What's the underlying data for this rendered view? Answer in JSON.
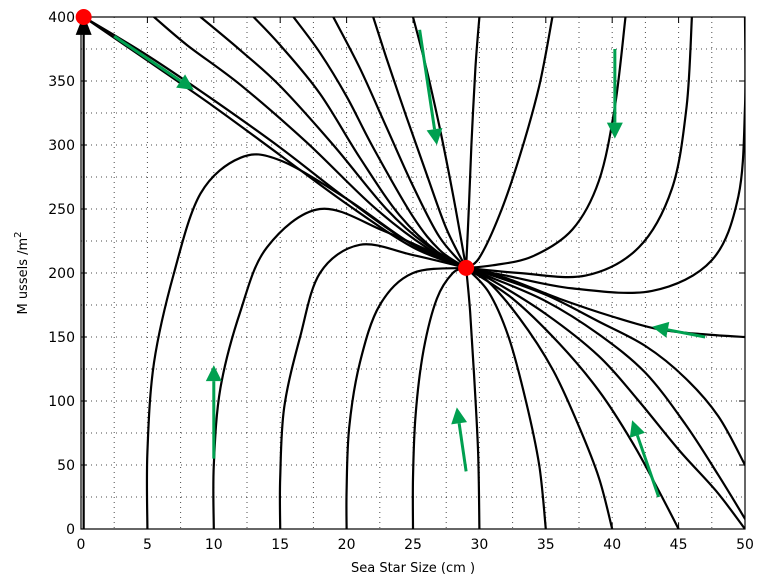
{
  "chart_data": {
    "type": "line",
    "title": "",
    "xlabel": "Sea Star Size (cm )",
    "ylabel": "M ussels /m",
    "ylabel_superscript": "2",
    "xlim": [
      0,
      50
    ],
    "ylim": [
      0,
      400
    ],
    "x_ticks": [
      0,
      5,
      10,
      15,
      20,
      25,
      30,
      35,
      40,
      45,
      50
    ],
    "y_ticks": [
      0,
      50,
      100,
      150,
      200,
      250,
      300,
      350,
      400
    ],
    "grid": true,
    "colors": {
      "trajectory": "#000000",
      "equilibrium": "#ff0000",
      "direction_arrow": "#00a050",
      "axis_arrow": "#000000"
    },
    "equilibria": [
      {
        "x": 0.2,
        "y": 400
      },
      {
        "x": 29,
        "y": 204
      }
    ],
    "trajectories": [
      [
        [
          0.2,
          400
        ],
        [
          5,
          370
        ],
        [
          10,
          335
        ],
        [
          15,
          298
        ],
        [
          20,
          258
        ],
        [
          25,
          222
        ],
        [
          29,
          204
        ]
      ],
      [
        [
          0.2,
          400
        ],
        [
          5,
          366
        ],
        [
          10,
          330
        ],
        [
          15,
          292
        ],
        [
          20,
          254
        ],
        [
          25,
          220
        ],
        [
          29,
          204
        ]
      ],
      [
        [
          5.5,
          400
        ],
        [
          8,
          378
        ],
        [
          12,
          347
        ],
        [
          17,
          302
        ],
        [
          22,
          252
        ],
        [
          26,
          220
        ],
        [
          29,
          204
        ]
      ],
      [
        [
          9,
          400
        ],
        [
          12,
          374
        ],
        [
          15,
          346
        ],
        [
          19,
          300
        ],
        [
          23,
          250
        ],
        [
          26,
          222
        ],
        [
          29,
          204
        ]
      ],
      [
        [
          13,
          400
        ],
        [
          15,
          378
        ],
        [
          18,
          340
        ],
        [
          21,
          290
        ],
        [
          24,
          245
        ],
        [
          27,
          215
        ],
        [
          29,
          204
        ]
      ],
      [
        [
          16,
          400
        ],
        [
          18,
          372
        ],
        [
          20,
          338
        ],
        [
          22,
          298
        ],
        [
          25,
          244
        ],
        [
          27,
          218
        ],
        [
          29,
          204
        ]
      ],
      [
        [
          19,
          400
        ],
        [
          21,
          360
        ],
        [
          23,
          314
        ],
        [
          25,
          268
        ],
        [
          27,
          228
        ],
        [
          29,
          204
        ]
      ],
      [
        [
          22,
          400
        ],
        [
          23,
          368
        ],
        [
          24.5,
          322
        ],
        [
          26,
          278
        ],
        [
          27.5,
          235
        ],
        [
          29,
          204
        ]
      ],
      [
        [
          25,
          400
        ],
        [
          26,
          360
        ],
        [
          27,
          314
        ],
        [
          28,
          262
        ],
        [
          29,
          204
        ]
      ],
      [
        [
          30,
          400
        ],
        [
          29.7,
          360
        ],
        [
          29.4,
          300
        ],
        [
          29.2,
          250
        ],
        [
          29,
          204
        ]
      ],
      [
        [
          35.5,
          400
        ],
        [
          34.5,
          346
        ],
        [
          33,
          290
        ],
        [
          31.5,
          245
        ],
        [
          30,
          212
        ],
        [
          29,
          204
        ]
      ],
      [
        [
          41,
          400
        ],
        [
          40.2,
          330
        ],
        [
          39,
          272
        ],
        [
          37,
          234
        ],
        [
          34,
          213
        ],
        [
          31,
          206
        ],
        [
          29,
          204
        ]
      ],
      [
        [
          46,
          400
        ],
        [
          45.6,
          330
        ],
        [
          44.5,
          266
        ],
        [
          42,
          220
        ],
        [
          38,
          198
        ],
        [
          33,
          200
        ],
        [
          29,
          204
        ]
      ],
      [
        [
          50,
          400
        ],
        [
          50,
          330
        ],
        [
          49.5,
          260
        ],
        [
          47.5,
          210
        ],
        [
          43,
          186
        ],
        [
          37,
          188
        ],
        [
          32,
          198
        ],
        [
          29,
          204
        ]
      ],
      [
        [
          5,
          0
        ],
        [
          5,
          60
        ],
        [
          5.5,
          130
        ],
        [
          7,
          200
        ],
        [
          9,
          262
        ],
        [
          12,
          290
        ],
        [
          15,
          288
        ],
        [
          20,
          258
        ],
        [
          25,
          222
        ],
        [
          29,
          204
        ]
      ],
      [
        [
          10,
          0
        ],
        [
          10,
          50
        ],
        [
          10.5,
          110
        ],
        [
          12,
          170
        ],
        [
          14,
          220
        ],
        [
          18,
          250
        ],
        [
          23,
          232
        ],
        [
          29,
          204
        ]
      ],
      [
        [
          15,
          0
        ],
        [
          15,
          40
        ],
        [
          15.3,
          95
        ],
        [
          16.5,
          150
        ],
        [
          18,
          200
        ],
        [
          21,
          222
        ],
        [
          25,
          214
        ],
        [
          29,
          204
        ]
      ],
      [
        [
          20,
          0
        ],
        [
          20,
          30
        ],
        [
          20.2,
          80
        ],
        [
          21,
          130
        ],
        [
          22.5,
          175
        ],
        [
          25,
          200
        ],
        [
          29,
          204
        ]
      ],
      [
        [
          25,
          0
        ],
        [
          25,
          40
        ],
        [
          25.2,
          90
        ],
        [
          25.8,
          140
        ],
        [
          26.8,
          180
        ],
        [
          28,
          200
        ],
        [
          29,
          204
        ]
      ],
      [
        [
          30,
          0
        ],
        [
          29.9,
          60
        ],
        [
          29.6,
          120
        ],
        [
          29.3,
          170
        ],
        [
          29,
          204
        ]
      ],
      [
        [
          35,
          0
        ],
        [
          34.5,
          50
        ],
        [
          33.5,
          100
        ],
        [
          32.2,
          150
        ],
        [
          30.7,
          185
        ],
        [
          29,
          204
        ]
      ],
      [
        [
          40,
          0
        ],
        [
          39,
          40
        ],
        [
          37.5,
          80
        ],
        [
          35.5,
          125
        ],
        [
          33,
          165
        ],
        [
          30.5,
          195
        ],
        [
          29,
          204
        ]
      ],
      [
        [
          45,
          0
        ],
        [
          43.5,
          30
        ],
        [
          41.5,
          68
        ],
        [
          39,
          108
        ],
        [
          36,
          145
        ],
        [
          32.5,
          180
        ],
        [
          29,
          204
        ]
      ],
      [
        [
          50,
          0
        ],
        [
          47.8,
          30
        ],
        [
          45,
          62
        ],
        [
          42,
          100
        ],
        [
          39,
          135
        ],
        [
          35,
          168
        ],
        [
          31,
          194
        ],
        [
          29,
          204
        ]
      ],
      [
        [
          50,
          8
        ],
        [
          48,
          42
        ],
        [
          45.5,
          82
        ],
        [
          42.5,
          122
        ],
        [
          39,
          152
        ],
        [
          35,
          178
        ],
        [
          31,
          196
        ],
        [
          29,
          204
        ]
      ],
      [
        [
          50,
          50
        ],
        [
          48,
          88
        ],
        [
          45.5,
          118
        ],
        [
          42.5,
          143
        ],
        [
          39,
          162
        ],
        [
          35,
          183
        ],
        [
          31,
          198
        ],
        [
          29,
          204
        ]
      ],
      [
        [
          50,
          150
        ],
        [
          47,
          152
        ],
        [
          43.5,
          156
        ],
        [
          40,
          166
        ],
        [
          36,
          180
        ],
        [
          32,
          196
        ],
        [
          29,
          204
        ]
      ]
    ],
    "direction_arrows": [
      {
        "from": [
          2.5,
          385
        ],
        "to": [
          8.5,
          343
        ]
      },
      {
        "from": [
          25.5,
          390
        ],
        "to": [
          26.8,
          300
        ]
      },
      {
        "from": [
          40.2,
          375
        ],
        "to": [
          40.2,
          305
        ]
      },
      {
        "from": [
          47,
          150
        ],
        "to": [
          43,
          158
        ]
      },
      {
        "from": [
          43.5,
          25
        ],
        "to": [
          41.5,
          85
        ]
      },
      {
        "from": [
          29,
          45
        ],
        "to": [
          28.3,
          95
        ]
      },
      {
        "from": [
          10,
          55
        ],
        "to": [
          10,
          128
        ]
      }
    ]
  }
}
